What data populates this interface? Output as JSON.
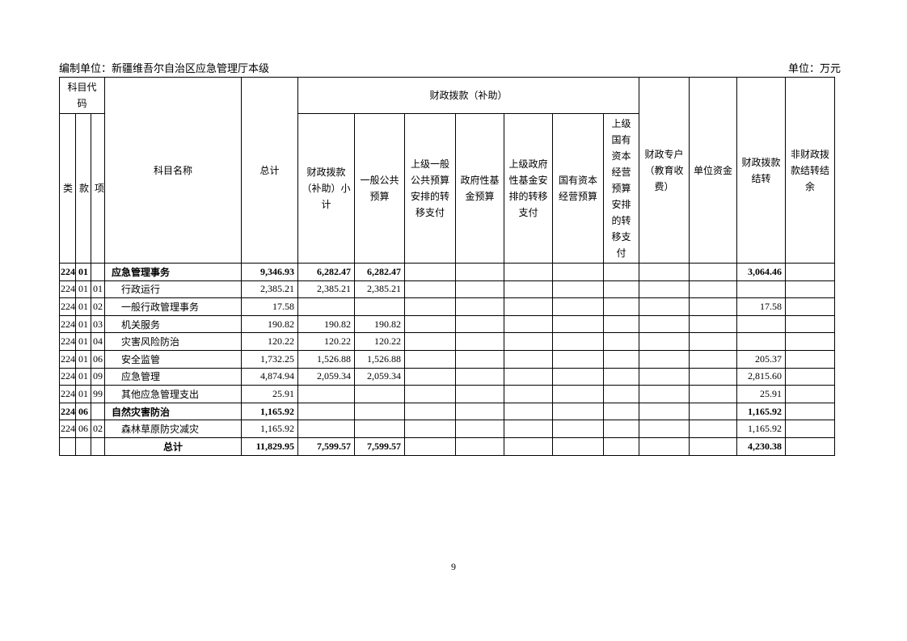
{
  "page": {
    "compiling_unit": "编制单位：新疆维吾尔自治区应急管理厅本级",
    "unit": "单位：万元",
    "page_number": "9"
  },
  "table": {
    "header": {
      "subject_code": "科目代码",
      "cls": "类",
      "sec": "款",
      "item": "项",
      "subject_name": "科目名称",
      "total": "总计",
      "fiscal_group": "财政拨款（补助）",
      "fiscal_subtotal": "财政拨款（补助）小计",
      "general_public_budget": "一般公共预算",
      "higher_general_public_transfer": "上级一般公共预算安排的转移支付",
      "gov_fund_budget": "政府性基金预算",
      "higher_gov_fund_transfer": "上级政府性基金安排的转移支付",
      "state_capital_budget": "国有资本经营预算",
      "higher_state_capital_transfer": "上级国有资本经营预算安排的转移支付",
      "fiscal_special_account": "财政专户（教育收费）",
      "unit_funds": "单位资金",
      "fiscal_carryover": "财政拨款结转",
      "non_fiscal_carryover": "非财政拨款结转结余"
    },
    "rows": [
      {
        "cells": [
          "224",
          "01",
          "",
          "应急管理事务",
          "9,346.93",
          "6,282.47",
          "6,282.47",
          "",
          "",
          "",
          "",
          "",
          "",
          "",
          "3,064.46",
          ""
        ],
        "bold": true,
        "indent": 1,
        "center_name": false
      },
      {
        "cells": [
          "224",
          "01",
          "01",
          "行政运行",
          "2,385.21",
          "2,385.21",
          "2,385.21",
          "",
          "",
          "",
          "",
          "",
          "",
          "",
          "",
          ""
        ],
        "bold": false,
        "indent": 2,
        "center_name": false
      },
      {
        "cells": [
          "224",
          "01",
          "02",
          "一般行政管理事务",
          "17.58",
          "",
          "",
          "",
          "",
          "",
          "",
          "",
          "",
          "",
          "17.58",
          ""
        ],
        "bold": false,
        "indent": 2,
        "center_name": false
      },
      {
        "cells": [
          "224",
          "01",
          "03",
          "机关服务",
          "190.82",
          "190.82",
          "190.82",
          "",
          "",
          "",
          "",
          "",
          "",
          "",
          "",
          ""
        ],
        "bold": false,
        "indent": 2,
        "center_name": false
      },
      {
        "cells": [
          "224",
          "01",
          "04",
          "灾害风险防治",
          "120.22",
          "120.22",
          "120.22",
          "",
          "",
          "",
          "",
          "",
          "",
          "",
          "",
          ""
        ],
        "bold": false,
        "indent": 2,
        "center_name": false
      },
      {
        "cells": [
          "224",
          "01",
          "06",
          "安全监管",
          "1,732.25",
          "1,526.88",
          "1,526.88",
          "",
          "",
          "",
          "",
          "",
          "",
          "",
          "205.37",
          ""
        ],
        "bold": false,
        "indent": 2,
        "center_name": false
      },
      {
        "cells": [
          "224",
          "01",
          "09",
          "应急管理",
          "4,874.94",
          "2,059.34",
          "2,059.34",
          "",
          "",
          "",
          "",
          "",
          "",
          "",
          "2,815.60",
          ""
        ],
        "bold": false,
        "indent": 2,
        "center_name": false
      },
      {
        "cells": [
          "224",
          "01",
          "99",
          "其他应急管理支出",
          "25.91",
          "",
          "",
          "",
          "",
          "",
          "",
          "",
          "",
          "",
          "25.91",
          ""
        ],
        "bold": false,
        "indent": 2,
        "center_name": false
      },
      {
        "cells": [
          "224",
          "06",
          "",
          "自然灾害防治",
          "1,165.92",
          "",
          "",
          "",
          "",
          "",
          "",
          "",
          "",
          "",
          "1,165.92",
          ""
        ],
        "bold": true,
        "indent": 1,
        "center_name": false
      },
      {
        "cells": [
          "224",
          "06",
          "02",
          "森林草原防灾减灾",
          "1,165.92",
          "",
          "",
          "",
          "",
          "",
          "",
          "",
          "",
          "",
          "1,165.92",
          ""
        ],
        "bold": false,
        "indent": 2,
        "center_name": false
      },
      {
        "cells": [
          "",
          "",
          "",
          "总计",
          "11,829.95",
          "7,599.57",
          "7,599.57",
          "",
          "",
          "",
          "",
          "",
          "",
          "",
          "4,230.38",
          ""
        ],
        "bold": true,
        "indent": 0,
        "center_name": true
      }
    ]
  }
}
